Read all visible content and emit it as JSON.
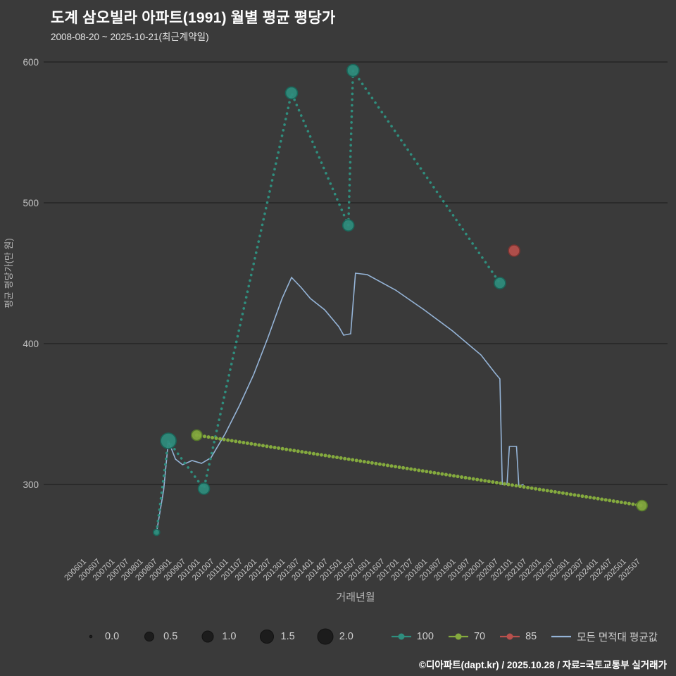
{
  "page": {
    "title": "도계 삼오빌라 아파트(1991) 월별 평균 평당가",
    "subtitle": "2008-08-20 ~ 2025-10-21(최근계약일)",
    "footer": "©디아파트(dapt.kr) / 2025.10.28 / 자료=국토교통부 실거래가"
  },
  "colors": {
    "background": "#3a3a3a",
    "grid": "#2a2a2a",
    "tick_text": "#c4c4c4",
    "axis_text": "#b5b5b5",
    "title_text": "#ffffff",
    "teal": "#2f8e7e",
    "green": "#84aa3e",
    "red": "#b8504c",
    "blue": "#95b4d7"
  },
  "chart_data": {
    "type": "scatter",
    "title": "도계 삼오빌라 아파트(1991) 월별 평균 평당가",
    "subtitle": "2008-08-20 ~ 2025-10-21(최근계약일)",
    "xlabel": "거래년월",
    "ylabel": "평균 평당가(만 원)",
    "grid": "horizontal-only",
    "legend_position": "bottom",
    "y_ticks": [
      300,
      400,
      500,
      600
    ],
    "ylim": [
      255,
      610
    ],
    "x_tick_labels": [
      "200601",
      "200607",
      "200701",
      "200707",
      "200801",
      "200807",
      "200901",
      "200907",
      "201001",
      "201007",
      "201101",
      "201107",
      "201201",
      "201207",
      "201301",
      "201307",
      "201401",
      "201407",
      "201501",
      "201507",
      "201601",
      "201607",
      "201701",
      "201707",
      "201801",
      "201807",
      "201901",
      "201907",
      "202001",
      "202007",
      "202101",
      "202107",
      "202201",
      "202207",
      "202301",
      "202307",
      "202401",
      "202407",
      "202501",
      "202507"
    ],
    "series": [
      {
        "key": "area-100",
        "name": "100",
        "style": "dotted",
        "color": "#2f8e7e",
        "edge": "#1a6458",
        "width": 3.6,
        "dash": "0.1 8",
        "points": [
          {
            "ym": "200808",
            "v": 266,
            "r": 4.5
          },
          {
            "ym": "200901",
            "v": 331,
            "r": 11
          },
          {
            "ym": "201004",
            "v": 297,
            "r": 8
          },
          {
            "ym": "201305",
            "v": 578,
            "r": 8.5
          },
          {
            "ym": "201505",
            "v": 484,
            "r": 8
          },
          {
            "ym": "201507",
            "v": 594,
            "r": 8.5
          },
          {
            "ym": "202009",
            "v": 443,
            "r": 8
          }
        ]
      },
      {
        "key": "area-70",
        "name": "70",
        "style": "dotted",
        "color": "#84aa3e",
        "edge": "#55772a",
        "width": 5,
        "dash": "0.1 5.5",
        "points": [
          {
            "ym": "201001",
            "v": 335,
            "r": 7.5
          },
          {
            "ym": "202509",
            "v": 285,
            "r": 7.5
          }
        ]
      },
      {
        "key": "area-85",
        "name": "85",
        "style": "marker",
        "color": "#b8504c",
        "edge": "#7c3431",
        "points": [
          {
            "ym": "202103",
            "v": 466,
            "r": 8
          }
        ]
      },
      {
        "key": "all-areas-avg",
        "name": "모든 면적대 평균값",
        "style": "line",
        "color": "#95b4d7",
        "width": 1.6,
        "points": [
          [
            "200808",
            266
          ],
          [
            "200811",
            296
          ],
          [
            "200901",
            331
          ],
          [
            "200904",
            318
          ],
          [
            "200907",
            314
          ],
          [
            "200911",
            317
          ],
          [
            "201003",
            315
          ],
          [
            "201007",
            319
          ],
          [
            "201101",
            336
          ],
          [
            "201107",
            356
          ],
          [
            "201201",
            378
          ],
          [
            "201207",
            404
          ],
          [
            "201301",
            432
          ],
          [
            "201305",
            447
          ],
          [
            "201309",
            440
          ],
          [
            "201401",
            432
          ],
          [
            "201407",
            424
          ],
          [
            "201501",
            412
          ],
          [
            "201503",
            406
          ],
          [
            "201506",
            407
          ],
          [
            "201508",
            450
          ],
          [
            "201601",
            449
          ],
          [
            "201701",
            438
          ],
          [
            "201801",
            424
          ],
          [
            "201901",
            409
          ],
          [
            "202001",
            392
          ],
          [
            "202007",
            379
          ],
          [
            "202009",
            375
          ],
          [
            "202010",
            300
          ],
          [
            "202012",
            300
          ],
          [
            "202101",
            327
          ],
          [
            "202104",
            327
          ],
          [
            "202105",
            299
          ],
          [
            "202107",
            300
          ]
        ]
      }
    ]
  },
  "legend": {
    "sizes": [
      {
        "label": "0.0",
        "r": 1.8
      },
      {
        "label": "0.5",
        "r": 6.5
      },
      {
        "label": "1.0",
        "r": 8
      },
      {
        "label": "1.5",
        "r": 9.5
      },
      {
        "label": "2.0",
        "r": 11
      }
    ],
    "series": [
      {
        "key": "area-100",
        "label": "100",
        "color": "#2f8e7e",
        "marker": true
      },
      {
        "key": "area-70",
        "label": "70",
        "color": "#84aa3e",
        "marker": true
      },
      {
        "key": "area-85",
        "label": "85",
        "color": "#b8504c",
        "marker": true
      },
      {
        "key": "all-areas-avg",
        "label": "모든 면적대 평균값",
        "color": "#95b4d7",
        "marker": false
      }
    ]
  }
}
